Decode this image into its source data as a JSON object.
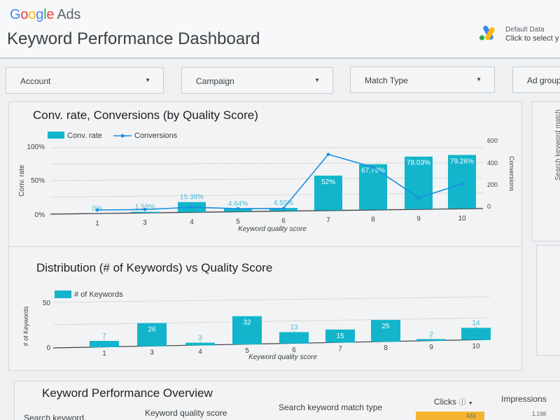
{
  "header": {
    "logo_google": "Google",
    "logo_ads": "Ads",
    "title": "Keyword Performance Dashboard",
    "data_source_label": "Default Data",
    "data_source_link": "Click to select y"
  },
  "filters": [
    {
      "label": "Account"
    },
    {
      "label": "Campaign"
    },
    {
      "label": "Match Type"
    },
    {
      "label": "Ad group"
    }
  ],
  "chart_data": [
    {
      "type": "bar+line",
      "title": "Conv. rate, Conversions (by Quality Score)",
      "xlabel": "Keyword quality score",
      "ylabel": "Conv. rate",
      "y2label": "Conversions",
      "legend": [
        "Conv. rate",
        "Conversions"
      ],
      "legend_position": "top-left",
      "categories": [
        "1",
        "3",
        "4",
        "5",
        "6",
        "7",
        "8",
        "9",
        "10"
      ],
      "y_ticks": [
        "0%",
        "50%",
        "100%"
      ],
      "y2_ticks": [
        "0",
        "200",
        "400",
        "600"
      ],
      "ylim": [
        0,
        100
      ],
      "y2lim": [
        0,
        600
      ],
      "series": [
        {
          "name": "Conv. rate",
          "kind": "bar",
          "values": [
            0,
            1.59,
            15.38,
            4.64,
            4.55,
            52,
            67.79,
            78.03,
            79.26
          ],
          "labels": [
            "0%",
            "1.59%",
            "15.38%",
            "4.64%",
            "4.55%",
            "52%",
            "67.79%",
            "78.03%",
            "79.26%"
          ]
        },
        {
          "name": "Conversions",
          "kind": "line",
          "values": [
            0,
            2,
            20,
            5,
            5,
            500,
            380,
            95,
            220
          ]
        }
      ],
      "colors": {
        "bar": "#12b5cb",
        "line": "#1a8fe0"
      }
    },
    {
      "type": "bar",
      "title": "Distribution (# of Keywords) vs Quality Score",
      "xlabel": "Keyword quality score",
      "ylabel": "# of Keywords",
      "legend": [
        "# of Keywords"
      ],
      "legend_position": "top-left",
      "categories": [
        "1",
        "3",
        "4",
        "5",
        "6",
        "7",
        "8",
        "9",
        "10"
      ],
      "y_ticks": [
        "0",
        "50"
      ],
      "ylim": [
        0,
        50
      ],
      "values": [
        7,
        26,
        3,
        32,
        13,
        15,
        25,
        2,
        14
      ],
      "colors": {
        "bar": "#12b5cb"
      }
    }
  ],
  "side_panel": {
    "rotated_label": "Search keyword match"
  },
  "table": {
    "title": "Keyword Performance Overview",
    "columns": [
      "Search keyword",
      "Keyword quality score",
      "Search keyword match type",
      "Clicks",
      "Impressions"
    ],
    "clicks_sort_icon": "info-icon",
    "first_row": {
      "clicks": "433",
      "impressions": "1,198"
    }
  }
}
